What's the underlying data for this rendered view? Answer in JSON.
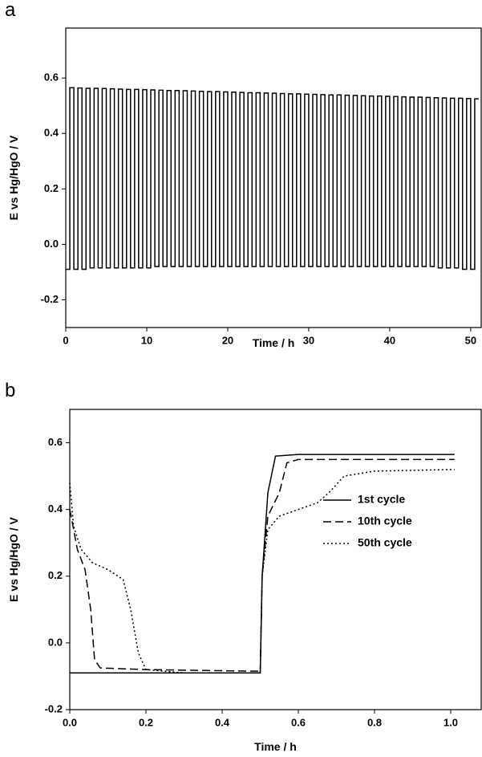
{
  "chart_data": [
    {
      "type": "line",
      "title": "a",
      "xlabel": "Time / h",
      "ylabel": "E vs Hg/HgO / V",
      "color": "#000000",
      "xlim": [
        0,
        51.3
      ],
      "xticks": [
        0,
        10,
        20,
        30,
        40,
        50
      ],
      "ylim": [
        -0.3,
        0.78
      ],
      "yticks": [
        -0.2,
        {
          "value": 0,
          "label": "0.0"
        },
        0.2,
        0.4,
        0.6
      ],
      "x": [
        0,
        0.5,
        0.5,
        1,
        1,
        1.5,
        1.5,
        2,
        2,
        2.5,
        2.5,
        3,
        3,
        3.5,
        3.5,
        4,
        4,
        4.5,
        4.5,
        5,
        5,
        5.5,
        5.5,
        6,
        6,
        6.5,
        6.5,
        7,
        7,
        7.5,
        7.5,
        8,
        8,
        8.5,
        8.5,
        9,
        9,
        9.5,
        9.5,
        10,
        10,
        10.5,
        10.5,
        11,
        11,
        11.5,
        11.5,
        12,
        12,
        12.5,
        12.5,
        13,
        13,
        13.5,
        13.5,
        14,
        14,
        14.5,
        14.5,
        15,
        15,
        15.5,
        15.5,
        16,
        16,
        16.5,
        16.5,
        17,
        17,
        17.5,
        17.5,
        18,
        18,
        18.5,
        18.5,
        19,
        19,
        19.5,
        19.5,
        20,
        20,
        20.5,
        20.5,
        21,
        21,
        21.5,
        21.5,
        22,
        22,
        22.5,
        22.5,
        23,
        23,
        23.5,
        23.5,
        24,
        24,
        24.5,
        24.5,
        25,
        25,
        25.5,
        25.5,
        26,
        26,
        26.5,
        26.5,
        27,
        27,
        27.5,
        27.5,
        28,
        28,
        28.5,
        28.5,
        29,
        29,
        29.5,
        29.5,
        30,
        30,
        30.5,
        30.5,
        31,
        31,
        31.5,
        31.5,
        32,
        32,
        32.5,
        32.5,
        33,
        33,
        33.5,
        33.5,
        34,
        34,
        34.5,
        34.5,
        35,
        35,
        35.5,
        35.5,
        36,
        36,
        36.5,
        36.5,
        37,
        37,
        37.5,
        37.5,
        38,
        38,
        38.5,
        38.5,
        39,
        39,
        39.5,
        39.5,
        40,
        40,
        40.5,
        40.5,
        41,
        41,
        41.5,
        41.5,
        42,
        42,
        42.5,
        42.5,
        43,
        43,
        43.5,
        43.5,
        44,
        44,
        44.5,
        44.5,
        45,
        45,
        45.5,
        45.5,
        46,
        46,
        46.5,
        46.5,
        47,
        47,
        47.5,
        47.5,
        48,
        48,
        48.5,
        48.5,
        49,
        49,
        49.5,
        49.5,
        50,
        50,
        50.5,
        50.5,
        51
      ],
      "values": [
        -0.09,
        -0.09,
        0.565,
        0.565,
        -0.09,
        -0.09,
        0.564,
        0.564,
        -0.09,
        -0.09,
        0.563,
        0.563,
        -0.085,
        -0.085,
        0.563,
        0.563,
        -0.085,
        -0.085,
        0.562,
        0.562,
        -0.085,
        -0.085,
        0.561,
        0.561,
        -0.085,
        -0.085,
        0.56,
        0.56,
        -0.085,
        -0.085,
        0.559,
        0.559,
        -0.085,
        -0.085,
        0.559,
        0.559,
        -0.085,
        -0.085,
        0.558,
        0.558,
        -0.085,
        -0.085,
        0.557,
        0.557,
        -0.08,
        -0.08,
        0.556,
        0.556,
        -0.08,
        -0.08,
        0.555,
        0.555,
        -0.08,
        -0.08,
        0.555,
        0.555,
        -0.08,
        -0.08,
        0.554,
        0.554,
        -0.08,
        -0.08,
        0.553,
        0.553,
        -0.08,
        -0.08,
        0.552,
        0.552,
        -0.08,
        -0.08,
        0.551,
        0.551,
        -0.08,
        -0.08,
        0.551,
        0.551,
        -0.08,
        -0.08,
        0.55,
        0.55,
        -0.08,
        -0.08,
        0.549,
        0.549,
        -0.08,
        -0.08,
        0.548,
        0.548,
        -0.08,
        -0.08,
        0.547,
        0.547,
        -0.08,
        -0.08,
        0.547,
        0.547,
        -0.08,
        -0.08,
        0.546,
        0.546,
        -0.08,
        -0.08,
        0.545,
        0.545,
        -0.08,
        -0.08,
        0.544,
        0.544,
        -0.08,
        -0.08,
        0.543,
        0.543,
        -0.08,
        -0.08,
        0.543,
        0.543,
        -0.08,
        -0.08,
        0.542,
        0.542,
        -0.08,
        -0.08,
        0.541,
        0.541,
        -0.08,
        -0.08,
        0.54,
        0.54,
        -0.08,
        -0.08,
        0.539,
        0.539,
        -0.08,
        -0.08,
        0.539,
        0.539,
        -0.08,
        -0.08,
        0.538,
        0.538,
        -0.08,
        -0.08,
        0.537,
        0.537,
        -0.08,
        -0.08,
        0.536,
        0.536,
        -0.08,
        -0.08,
        0.535,
        0.535,
        -0.08,
        -0.08,
        0.535,
        0.535,
        -0.08,
        -0.08,
        0.534,
        0.534,
        -0.08,
        -0.08,
        0.533,
        0.533,
        -0.08,
        -0.08,
        0.532,
        0.532,
        -0.08,
        -0.08,
        0.531,
        0.531,
        -0.08,
        -0.08,
        0.531,
        0.531,
        -0.08,
        -0.08,
        0.53,
        0.53,
        -0.08,
        -0.08,
        0.529,
        0.529,
        -0.085,
        -0.085,
        0.528,
        0.528,
        -0.085,
        -0.085,
        0.527,
        0.527,
        -0.085,
        -0.085,
        0.527,
        0.527,
        -0.09,
        -0.09,
        0.526,
        0.526,
        -0.09,
        -0.09,
        0.525,
        0.525
      ]
    },
    {
      "type": "line",
      "title": "b",
      "xlabel": "Time / h",
      "ylabel": "E vs Hg/HgO / V",
      "legend": "right",
      "xlim": [
        0,
        1.08
      ],
      "xticks": [
        {
          "value": 0,
          "label": "0.0"
        },
        0.2,
        0.4,
        0.6,
        0.8,
        {
          "value": 1,
          "label": "1.0"
        }
      ],
      "ylim": [
        -0.2,
        0.7
      ],
      "yticks": [
        -0.2,
        {
          "value": 0,
          "label": "0.0"
        },
        0.2,
        0.4,
        0.6
      ],
      "series": [
        {
          "name": "1st cycle",
          "color": "#000000",
          "dash": "solid",
          "x": [
            0,
            0.5,
            0.505,
            0.52,
            0.54,
            0.6,
            0.7,
            1.01
          ],
          "values": [
            -0.09,
            -0.09,
            0.2,
            0.45,
            0.56,
            0.565,
            0.565,
            0.565
          ]
        },
        {
          "name": "10th cycle",
          "color": "#000000",
          "dash": "dashed",
          "x": [
            0,
            0.02,
            0.04,
            0.055,
            0.065,
            0.08,
            0.2,
            0.5,
            0.505,
            0.52,
            0.55,
            0.57,
            0.6,
            1.01
          ],
          "values": [
            0.4,
            0.28,
            0.22,
            0.1,
            -0.05,
            -0.075,
            -0.08,
            -0.085,
            0.2,
            0.38,
            0.45,
            0.54,
            0.55,
            0.55
          ]
        },
        {
          "name": "50th cycle",
          "color": "#000000",
          "dash": "dotted",
          "x": [
            0,
            0.01,
            0.03,
            0.06,
            0.1,
            0.14,
            0.16,
            0.18,
            0.2,
            0.3,
            0.5,
            0.505,
            0.52,
            0.55,
            0.6,
            0.65,
            0.68,
            0.72,
            0.8,
            1.01
          ],
          "values": [
            0.48,
            0.35,
            0.28,
            0.24,
            0.22,
            0.19,
            0.1,
            -0.03,
            -0.08,
            -0.09,
            -0.09,
            0.2,
            0.34,
            0.38,
            0.4,
            0.42,
            0.45,
            0.5,
            0.515,
            0.52
          ]
        }
      ]
    }
  ]
}
